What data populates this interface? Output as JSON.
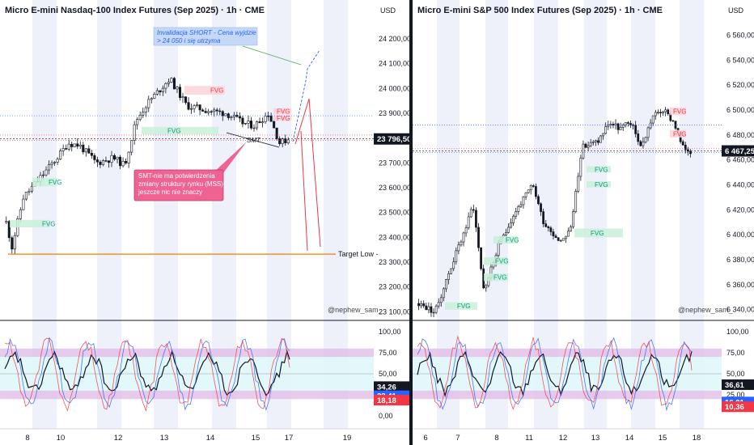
{
  "charts": [
    {
      "key": "left",
      "title": "Micro E-mini Nasdaq-100 Index Futures (Sep 2025) · 1h · CME",
      "currency": "USD",
      "price_ticks": [
        "24 200,00",
        "24 100,00",
        "24 000,00",
        "23 900,00",
        "23 800,00",
        "23 700,00",
        "23 600,00",
        "23 500,00",
        "23 400,00",
        "23 300,00",
        "23 200,00",
        "23 100,00"
      ],
      "price_tick_values": [
        24200,
        24100,
        24000,
        23900,
        23800,
        23700,
        23600,
        23500,
        23400,
        23300,
        23200,
        23100
      ],
      "price_range": [
        23078,
        24275
      ],
      "current_price_label": "23 796,50",
      "current_price": 23796.5,
      "osc_ticks": [
        "100,00",
        "75,00",
        "50,00",
        "25,00",
        "0,00"
      ],
      "osc_tick_values": [
        100,
        75,
        50,
        25,
        0
      ],
      "osc_labels": [
        {
          "text": "34,26",
          "value": 34.26,
          "color": "#131722"
        },
        {
          "text": "23,41",
          "value": 23.41,
          "color": "#2962ff"
        },
        {
          "text": "18,18",
          "value": 18.18,
          "color": "#f23645"
        }
      ],
      "date_ticks": [
        "8",
        "10",
        "12",
        "13",
        "14",
        "15",
        "17",
        "19"
      ],
      "watermark": "@nephew_sam_",
      "annotation_invalidation": [
        "Invalidacja SHORT - Cena wyjdzie",
        "> 24 050 i się utrzyma"
      ],
      "annotation_smt_callout": [
        "SMT-nie ma potwierdzenia",
        "zmiany struktury rynku (MSS)",
        "jeszcze nic nie znaczy"
      ],
      "annotation_smt": "SMT",
      "target_label": "Target Low -",
      "target_price": 23332,
      "fvg_label": "FVG",
      "colors": {
        "accent": "#131722",
        "target": "#f57c00",
        "up": "#131722",
        "callout_bg": "#f06292",
        "note_bg": "#c5d9f7"
      }
    },
    {
      "key": "right",
      "title": "Micro E-mini S&P 500 Index Futures (Sep 2025) · 1h · CME",
      "currency": "USD",
      "price_ticks": [
        "6 560,00",
        "6 540,00",
        "6 520,00",
        "6 500,00",
        "6 480,00",
        "6 460,00",
        "6 440,00",
        "6 420,00",
        "6 400,00",
        "6 380,00",
        "6 360,00",
        "6 340,00"
      ],
      "price_tick_values": [
        6560,
        6540,
        6520,
        6500,
        6480,
        6460,
        6440,
        6420,
        6400,
        6380,
        6360,
        6340
      ],
      "price_range": [
        6334,
        6572
      ],
      "current_price_label": "6 467,25",
      "current_price": 6467.25,
      "osc_ticks": [
        "100,00",
        "75,00",
        "50,00",
        "25,00"
      ],
      "osc_tick_values": [
        100,
        75,
        50,
        25
      ],
      "osc_labels": [
        {
          "text": "36,61",
          "value": 36.61,
          "color": "#131722"
        },
        {
          "text": "16,01",
          "value": 16.01,
          "color": "#2962ff"
        },
        {
          "text": "10,36",
          "value": 10.36,
          "color": "#f23645"
        }
      ],
      "date_ticks": [
        "6",
        "7",
        "8",
        "11",
        "12",
        "13",
        "14",
        "15",
        "18"
      ],
      "watermark": "@nephew_sam_",
      "fvg_label": "FVG"
    }
  ]
}
